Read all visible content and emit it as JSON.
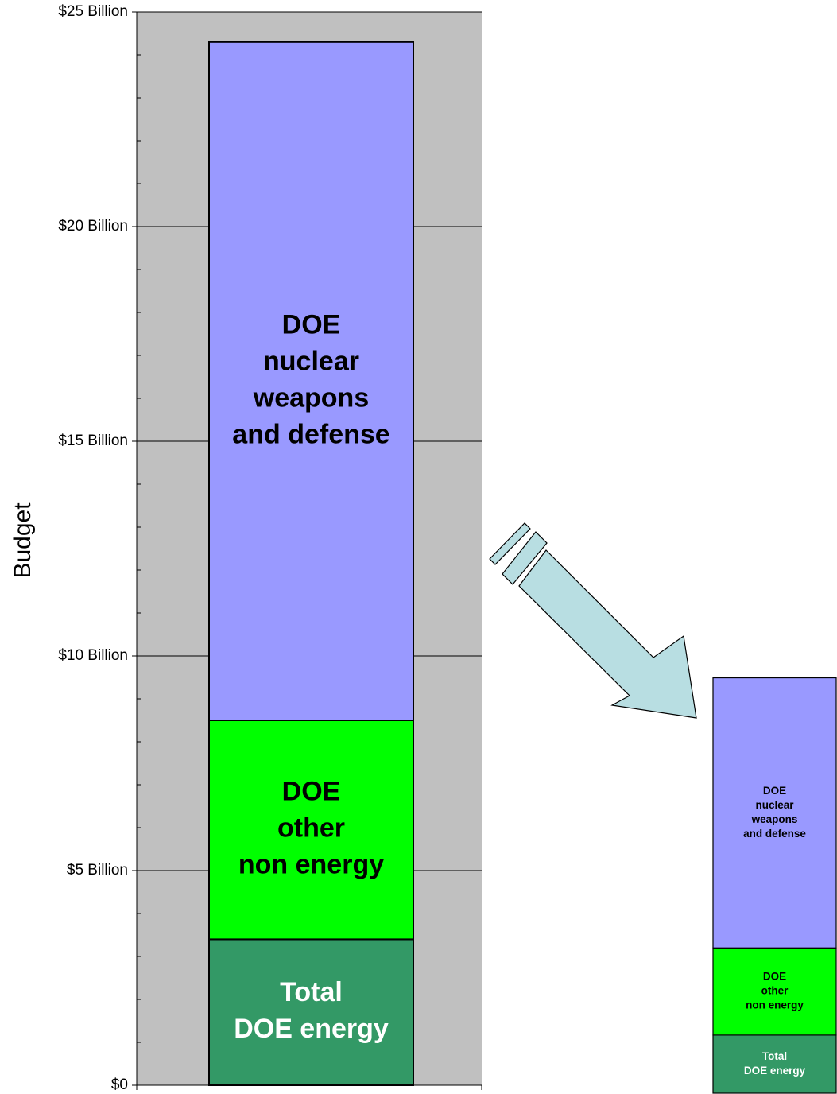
{
  "chart_data": {
    "type": "stacked_bar",
    "ylabel": "Budget",
    "series": [
      {
        "label_lines": [
          "Total",
          "DOE energy"
        ],
        "color": "#339966",
        "text_color": "#ffffff",
        "values": [
          3.4
        ]
      },
      {
        "label_lines": [
          "DOE",
          "other",
          "non energy"
        ],
        "color": "#00ff00",
        "text_color": "#000000",
        "values": [
          5.1
        ]
      },
      {
        "label_lines": [
          "DOE",
          "nuclear",
          "weapons",
          "and defense"
        ],
        "color": "#9999ff",
        "text_color": "#000000",
        "values": [
          15.8
        ]
      }
    ],
    "ylim": [
      0,
      25
    ],
    "yticks": [
      {
        "value": 0,
        "label": "$0"
      },
      {
        "value": 5,
        "label": "$5 Billion"
      },
      {
        "value": 10,
        "label": "$10 Billion"
      },
      {
        "value": 15,
        "label": "$15 Billion"
      },
      {
        "value": 20,
        "label": "$20 Billion"
      },
      {
        "value": 25,
        "label": "$25 Billion"
      }
    ],
    "minor_yticks": [
      1,
      2,
      3,
      4,
      6,
      7,
      8,
      9,
      11,
      12,
      13,
      14,
      16,
      17,
      18,
      19,
      21,
      22,
      23,
      24
    ],
    "grid": true,
    "background": "#c0c0c0"
  }
}
